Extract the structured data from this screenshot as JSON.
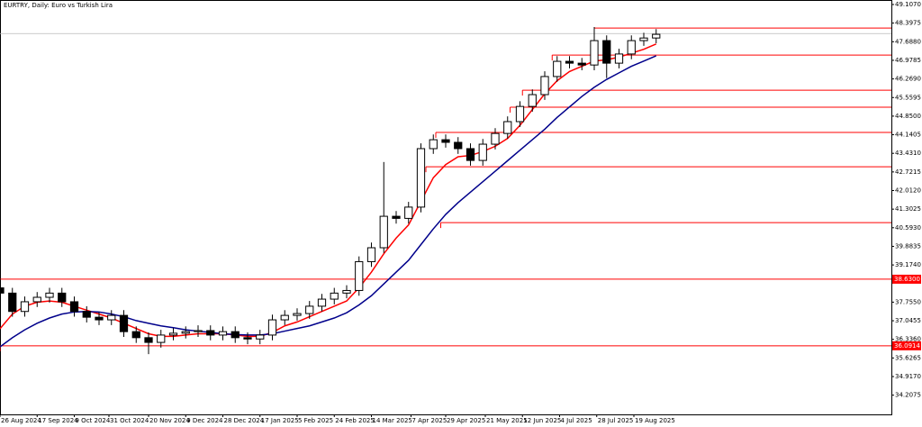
{
  "chart_data": {
    "type": "candlestick",
    "title": "EURTRY, Daily:  Euro vs Turkish Lira",
    "x": [
      0,
      5,
      10,
      15,
      20,
      25,
      30,
      35,
      40,
      45,
      50,
      55,
      60,
      65,
      70,
      75,
      80,
      85,
      90,
      95,
      100,
      105,
      110,
      115,
      120,
      125,
      130,
      135,
      140,
      145,
      150,
      155,
      160,
      165,
      170,
      175,
      180,
      185,
      190,
      195,
      200,
      205,
      210,
      215,
      220,
      225,
      230,
      235,
      240,
      245,
      250,
      255,
      260,
      265
    ],
    "open": [
      38.3,
      38.1,
      37.4,
      37.77,
      37.94,
      38.1,
      37.77,
      37.4,
      37.18,
      37.08,
      37.25,
      36.63,
      36.4,
      36.22,
      36.5,
      36.57,
      36.63,
      36.67,
      36.5,
      36.63,
      36.4,
      36.35,
      36.5,
      37.08,
      37.25,
      37.32,
      37.6,
      37.87,
      38.1,
      38.2,
      39.3,
      39.83,
      41.03,
      40.95,
      41.38,
      43.61,
      43.95,
      43.85,
      43.61,
      43.16,
      43.78,
      44.19,
      44.64,
      45.22,
      45.67,
      46.36,
      46.94,
      46.87,
      46.8,
      47.73,
      46.87,
      47.22,
      47.73,
      47.83
    ],
    "high": [
      38.65,
      38.3,
      37.97,
      38.14,
      38.3,
      38.3,
      37.97,
      37.6,
      37.38,
      37.45,
      37.45,
      36.83,
      36.6,
      36.7,
      36.77,
      36.83,
      36.87,
      36.87,
      36.83,
      36.83,
      36.6,
      36.7,
      37.28,
      37.45,
      37.52,
      37.8,
      38.07,
      38.3,
      38.4,
      39.5,
      40.03,
      43.1,
      41.23,
      41.58,
      43.81,
      44.15,
      44.15,
      44.05,
      43.81,
      43.98,
      44.39,
      44.84,
      45.42,
      45.87,
      46.56,
      47.14,
      47.14,
      47.07,
      48.25,
      47.93,
      47.42,
      47.93,
      48.03,
      48.17
    ],
    "low": [
      37.9,
      37.2,
      37.2,
      37.57,
      37.74,
      37.57,
      37.2,
      36.98,
      36.88,
      36.88,
      36.43,
      36.2,
      35.77,
      36.02,
      36.3,
      36.37,
      36.43,
      36.3,
      36.3,
      36.2,
      36.15,
      36.15,
      36.3,
      36.88,
      37.05,
      37.12,
      37.4,
      37.67,
      37.9,
      38.0,
      39.1,
      39.63,
      40.75,
      40.75,
      41.18,
      43.41,
      43.65,
      43.41,
      42.96,
      42.96,
      43.58,
      43.99,
      44.44,
      45.02,
      45.47,
      46.16,
      46.67,
      46.6,
      46.6,
      46.3,
      46.67,
      47.02,
      47.53,
      47.63
    ],
    "close": [
      38.1,
      37.4,
      37.77,
      37.94,
      38.1,
      37.77,
      37.4,
      37.18,
      37.08,
      37.25,
      36.63,
      36.4,
      36.22,
      36.5,
      36.57,
      36.63,
      36.67,
      36.5,
      36.63,
      36.4,
      36.35,
      36.5,
      37.08,
      37.25,
      37.32,
      37.6,
      37.87,
      38.1,
      38.2,
      39.3,
      39.83,
      41.03,
      40.95,
      41.38,
      43.61,
      43.95,
      43.85,
      43.61,
      43.16,
      43.78,
      44.19,
      44.64,
      45.22,
      45.67,
      46.36,
      46.94,
      46.87,
      46.8,
      47.73,
      46.87,
      47.22,
      47.73,
      47.83,
      47.97
    ],
    "overlays": [
      {
        "color": "#ff0000",
        "values": [
          36.74,
          37.3,
          37.6,
          37.75,
          37.8,
          37.75,
          37.6,
          37.45,
          37.3,
          37.15,
          36.95,
          36.75,
          36.55,
          36.45,
          36.45,
          36.5,
          36.55,
          36.55,
          36.55,
          36.5,
          36.45,
          36.45,
          36.6,
          36.85,
          37.0,
          37.2,
          37.4,
          37.6,
          37.8,
          38.3,
          38.9,
          39.6,
          40.2,
          40.7,
          41.6,
          42.5,
          43.0,
          43.3,
          43.35,
          43.5,
          43.7,
          44.0,
          44.5,
          45.1,
          45.7,
          46.2,
          46.55,
          46.75,
          46.95,
          47.0,
          47.1,
          47.25,
          47.4,
          47.6
        ]
      },
      {
        "color": "#00008b",
        "values": [
          36.05,
          36.4,
          36.7,
          36.95,
          37.15,
          37.3,
          37.38,
          37.4,
          37.38,
          37.3,
          37.2,
          37.05,
          36.95,
          36.85,
          36.78,
          36.7,
          36.65,
          36.6,
          36.55,
          36.52,
          36.5,
          36.5,
          36.55,
          36.65,
          36.75,
          36.85,
          37.0,
          37.15,
          37.35,
          37.65,
          38.0,
          38.45,
          38.9,
          39.35,
          39.95,
          40.55,
          41.1,
          41.55,
          41.95,
          42.35,
          42.75,
          43.15,
          43.55,
          43.95,
          44.35,
          44.8,
          45.2,
          45.6,
          45.95,
          46.25,
          46.5,
          46.75,
          46.95,
          47.15
        ]
      }
    ],
    "levels_color": "#ff0000",
    "levels": [
      {
        "value": 48.21,
        "from": 240
      },
      {
        "value": 47.18,
        "from": 223
      },
      {
        "value": 45.84,
        "from": 211
      },
      {
        "value": 45.19,
        "from": 206
      },
      {
        "value": 44.23,
        "from": 176
      },
      {
        "value": 42.92,
        "from": 172
      },
      {
        "value": 40.79,
        "from": 178
      },
      {
        "value": 38.63,
        "from": 0,
        "label": "38.6300"
      },
      {
        "value": 36.09,
        "from": 0,
        "label": "36.0914"
      }
    ],
    "last_price": 48.0,
    "xlim": [
      0,
      360
    ],
    "ylim": [
      33.474,
      49.279
    ],
    "xticks": [
      {
        "value": 0,
        "label": "26 Aug 2024"
      },
      {
        "value": 15,
        "label": "17 Sep 2024"
      },
      {
        "value": 30,
        "label": "9 Oct 2024"
      },
      {
        "value": 44,
        "label": "31 Oct 2024"
      },
      {
        "value": 60,
        "label": "20 Nov 2024"
      },
      {
        "value": 75,
        "label": "9 Dec 2024"
      },
      {
        "value": 90,
        "label": "28 Dec 2024"
      },
      {
        "value": 105,
        "label": "17 Jan 2025"
      },
      {
        "value": 120,
        "label": "5 Feb 2025"
      },
      {
        "value": 135,
        "label": "24 Feb 2025"
      },
      {
        "value": 150,
        "label": "14 Mar 2025"
      },
      {
        "value": 166,
        "label": "7 Apr 2025"
      },
      {
        "value": 180,
        "label": "29 Apr 2025"
      },
      {
        "value": 196,
        "label": "21 May 2025"
      },
      {
        "value": 211,
        "label": "12 Jun 2025"
      },
      {
        "value": 226,
        "label": "4 Jul 2025"
      },
      {
        "value": 241,
        "label": "28 Jul 2025"
      },
      {
        "value": 256,
        "label": "19 Aug 2025"
      }
    ],
    "yticks": [
      {
        "value": 49.107,
        "label": "49.1070"
      },
      {
        "value": 48.3975,
        "label": "48.3975"
      },
      {
        "value": 47.688,
        "label": "47.6880"
      },
      {
        "value": 46.9785,
        "label": "46.9785"
      },
      {
        "value": 46.269,
        "label": "46.2690"
      },
      {
        "value": 45.5595,
        "label": "45.5595"
      },
      {
        "value": 44.85,
        "label": "44.8500"
      },
      {
        "value": 44.1405,
        "label": "44.1405"
      },
      {
        "value": 43.431,
        "label": "43.4310"
      },
      {
        "value": 42.7215,
        "label": "42.7215"
      },
      {
        "value": 42.012,
        "label": "42.0120"
      },
      {
        "value": 41.3025,
        "label": "41.3025"
      },
      {
        "value": 40.593,
        "label": "40.5930"
      },
      {
        "value": 39.8835,
        "label": "39.8835"
      },
      {
        "value": 39.174,
        "label": "39.1740"
      },
      {
        "value": 37.755,
        "label": "37.7550"
      },
      {
        "value": 37.0455,
        "label": "37.0455"
      },
      {
        "value": 36.336,
        "label": "36.3360"
      },
      {
        "value": 35.6265,
        "label": "35.6265"
      },
      {
        "value": 34.917,
        "label": "34.9170"
      },
      {
        "value": 34.2075,
        "label": "34.2075"
      }
    ]
  }
}
